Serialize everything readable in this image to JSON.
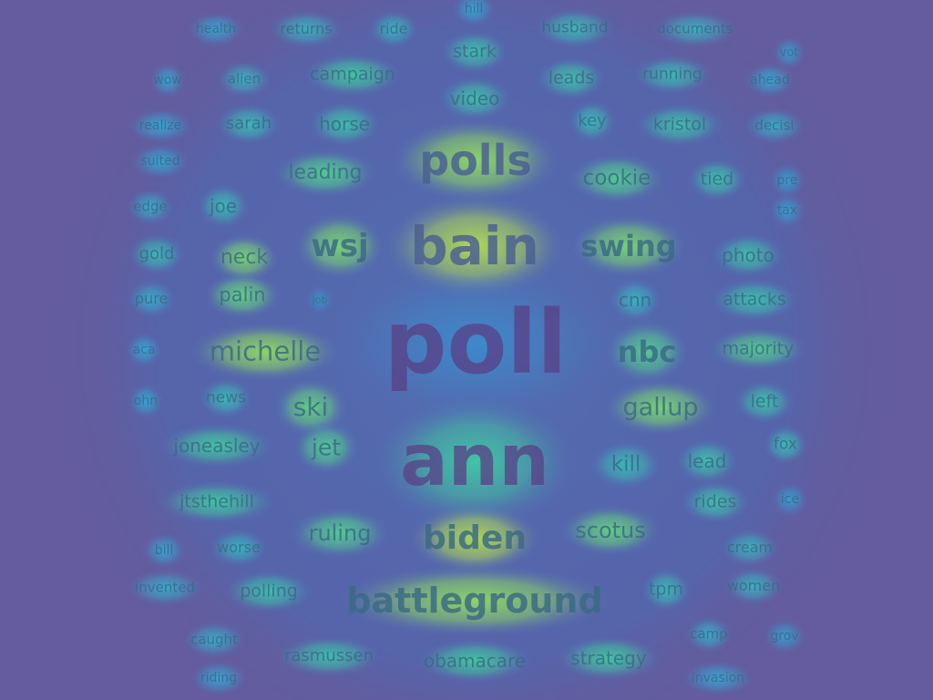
{
  "words": [
    {
      "text": "hill",
      "size": 14,
      "heat": 0.45
    },
    {
      "text": "health",
      "size": 14,
      "heat": 0.45
    },
    {
      "text": "returns",
      "size": 16,
      "heat": 0.55
    },
    {
      "text": "ride",
      "size": 16,
      "heat": 0.55
    },
    {
      "text": "husband",
      "size": 17,
      "heat": 0.6
    },
    {
      "text": "documents",
      "size": 15,
      "heat": 0.55
    },
    {
      "text": "stark",
      "size": 19,
      "heat": 0.65
    },
    {
      "text": "vot",
      "size": 13,
      "heat": 0.4
    },
    {
      "text": "wow",
      "size": 14,
      "heat": 0.45
    },
    {
      "text": "alien",
      "size": 15,
      "heat": 0.55
    },
    {
      "text": "campaign",
      "size": 19,
      "heat": 0.7
    },
    {
      "text": "leads",
      "size": 19,
      "heat": 0.65
    },
    {
      "text": "running",
      "size": 17,
      "heat": 0.6
    },
    {
      "text": "ahead",
      "size": 14,
      "heat": 0.45
    },
    {
      "text": "video",
      "size": 20,
      "heat": 0.65
    },
    {
      "text": "realize",
      "size": 14,
      "heat": 0.45
    },
    {
      "text": "sarah",
      "size": 18,
      "heat": 0.6
    },
    {
      "text": "horse",
      "size": 20,
      "heat": 0.65
    },
    {
      "text": "key",
      "size": 18,
      "heat": 0.6
    },
    {
      "text": "kristol",
      "size": 19,
      "heat": 0.65
    },
    {
      "text": "decisi",
      "size": 15,
      "heat": 0.5
    },
    {
      "text": "polls",
      "size": 46,
      "heat": 0.9
    },
    {
      "text": "suited",
      "size": 14,
      "heat": 0.45
    },
    {
      "text": "leading",
      "size": 22,
      "heat": 0.75
    },
    {
      "text": "cookie",
      "size": 23,
      "heat": 0.75
    },
    {
      "text": "tied",
      "size": 19,
      "heat": 0.65
    },
    {
      "text": "pre",
      "size": 14,
      "heat": 0.4
    },
    {
      "text": "edge",
      "size": 15,
      "heat": 0.5
    },
    {
      "text": "joe",
      "size": 20,
      "heat": 0.6
    },
    {
      "text": "tax",
      "size": 14,
      "heat": 0.4
    },
    {
      "text": "wsj",
      "size": 34,
      "heat": 0.85
    },
    {
      "text": "bain",
      "size": 58,
      "heat": 0.95
    },
    {
      "text": "swing",
      "size": 32,
      "heat": 0.85
    },
    {
      "text": "gold",
      "size": 18,
      "heat": 0.6
    },
    {
      "text": "neck",
      "size": 22,
      "heat": 0.85
    },
    {
      "text": "photo",
      "size": 20,
      "heat": 0.65
    },
    {
      "text": "pure",
      "size": 16,
      "heat": 0.5
    },
    {
      "text": "palin",
      "size": 21,
      "heat": 0.8
    },
    {
      "text": "job",
      "size": 11,
      "heat": 0.3
    },
    {
      "text": "cnn",
      "size": 20,
      "heat": 0.55
    },
    {
      "text": "attacks",
      "size": 19,
      "heat": 0.65
    },
    {
      "text": "poll",
      "size": 96,
      "heat": 0.25
    },
    {
      "text": "aca",
      "size": 14,
      "heat": 0.45
    },
    {
      "text": "michelle",
      "size": 29,
      "heat": 0.9
    },
    {
      "text": "nbc",
      "size": 32,
      "heat": 0.75
    },
    {
      "text": "majority",
      "size": 19,
      "heat": 0.75
    },
    {
      "text": "ohn",
      "size": 14,
      "heat": 0.45
    },
    {
      "text": "news",
      "size": 17,
      "heat": 0.6
    },
    {
      "text": "ski",
      "size": 28,
      "heat": 0.8
    },
    {
      "text": "gallup",
      "size": 27,
      "heat": 0.85
    },
    {
      "text": "left",
      "size": 19,
      "heat": 0.65
    },
    {
      "text": "joneasley",
      "size": 20,
      "heat": 0.7
    },
    {
      "text": "jet",
      "size": 25,
      "heat": 0.75
    },
    {
      "text": "ann",
      "size": 78,
      "heat": 0.7
    },
    {
      "text": "fox",
      "size": 17,
      "heat": 0.6
    },
    {
      "text": "kill",
      "size": 23,
      "heat": 0.6
    },
    {
      "text": "lead",
      "size": 20,
      "heat": 0.65
    },
    {
      "text": "jtsthehill",
      "size": 19,
      "heat": 0.7
    },
    {
      "text": "rides",
      "size": 19,
      "heat": 0.65
    },
    {
      "text": "ice",
      "size": 14,
      "heat": 0.4
    },
    {
      "text": "ruling",
      "size": 24,
      "heat": 0.75
    },
    {
      "text": "biden",
      "size": 36,
      "heat": 0.95
    },
    {
      "text": "scotus",
      "size": 24,
      "heat": 0.8
    },
    {
      "text": "bill",
      "size": 14,
      "heat": 0.45
    },
    {
      "text": "worse",
      "size": 16,
      "heat": 0.55
    },
    {
      "text": "cream",
      "size": 16,
      "heat": 0.55
    },
    {
      "text": "invented",
      "size": 15,
      "heat": 0.5
    },
    {
      "text": "polling",
      "size": 19,
      "heat": 0.65
    },
    {
      "text": "battleground",
      "size": 38,
      "heat": 0.9
    },
    {
      "text": "tpm",
      "size": 19,
      "heat": 0.6
    },
    {
      "text": "women",
      "size": 16,
      "heat": 0.55
    },
    {
      "text": "camp",
      "size": 15,
      "heat": 0.5
    },
    {
      "text": "grov",
      "size": 14,
      "heat": 0.4
    },
    {
      "text": "caught",
      "size": 15,
      "heat": 0.5
    },
    {
      "text": "rasmussen",
      "size": 18,
      "heat": 0.65
    },
    {
      "text": "obamacare",
      "size": 20,
      "heat": 0.7
    },
    {
      "text": "strategy",
      "size": 20,
      "heat": 0.7
    },
    {
      "text": "riding",
      "size": 14,
      "heat": 0.45
    },
    {
      "text": "invasion",
      "size": 14,
      "heat": 0.45
    }
  ]
}
